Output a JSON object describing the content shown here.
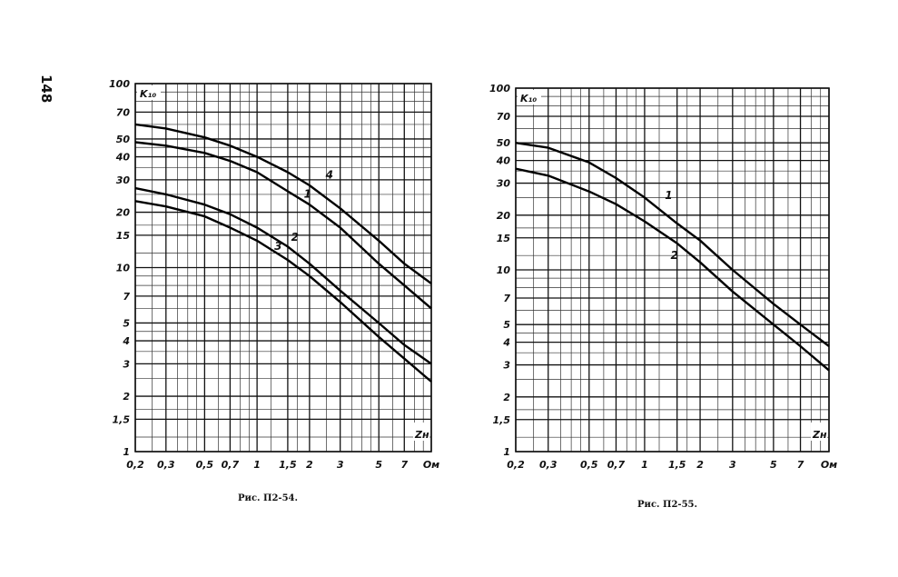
{
  "page_number": "148",
  "chart_data": [
    {
      "type": "line",
      "caption": "Рис. П2-54.",
      "ylabel": "K₁₀",
      "xlabel": "Zн",
      "x_scale": "log",
      "y_scale": "log",
      "xlim": [
        0.2,
        10
      ],
      "ylim": [
        1,
        100
      ],
      "grid": true,
      "x_ticks": [
        {
          "v": 0.2,
          "t": "0,2"
        },
        {
          "v": 0.3,
          "t": "0,3"
        },
        {
          "v": 0.5,
          "t": "0,5"
        },
        {
          "v": 0.7,
          "t": "0,7"
        },
        {
          "v": 1,
          "t": "1"
        },
        {
          "v": 1.5,
          "t": "1,5"
        },
        {
          "v": 2,
          "t": "2"
        },
        {
          "v": 3,
          "t": "3"
        },
        {
          "v": 5,
          "t": "5"
        },
        {
          "v": 7,
          "t": "7"
        },
        {
          "v": 10,
          "t": "Ом"
        }
      ],
      "y_ticks": [
        {
          "v": 1,
          "t": "1"
        },
        {
          "v": 1.5,
          "t": "1,5"
        },
        {
          "v": 2,
          "t": "2"
        },
        {
          "v": 3,
          "t": "3"
        },
        {
          "v": 4,
          "t": "4"
        },
        {
          "v": 5,
          "t": "5"
        },
        {
          "v": 7,
          "t": "7"
        },
        {
          "v": 10,
          "t": "10"
        },
        {
          "v": 15,
          "t": "15"
        },
        {
          "v": 20,
          "t": "20"
        },
        {
          "v": 30,
          "t": "30"
        },
        {
          "v": 40,
          "t": "40"
        },
        {
          "v": 50,
          "t": "50"
        },
        {
          "v": 70,
          "t": "70"
        },
        {
          "v": 100,
          "t": "100"
        }
      ],
      "series": [
        {
          "name": "4",
          "label_at": [
            2.6,
            30.5
          ],
          "x": [
            0.2,
            0.3,
            0.5,
            0.7,
            1,
            1.5,
            2,
            3,
            5,
            7,
            10
          ],
          "y": [
            60,
            57,
            51,
            46,
            40,
            33,
            28,
            21,
            14,
            10.5,
            8.2
          ]
        },
        {
          "name": "1",
          "label_at": [
            1.95,
            24
          ],
          "x": [
            0.2,
            0.3,
            0.5,
            0.7,
            1,
            1.5,
            2,
            3,
            5,
            7,
            10
          ],
          "y": [
            48,
            46,
            42,
            38,
            33,
            26,
            22,
            16.5,
            10.5,
            8,
            6
          ]
        },
        {
          "name": "2",
          "label_at": [
            1.65,
            14
          ],
          "x": [
            0.2,
            0.3,
            0.5,
            0.7,
            1,
            1.5,
            2,
            3,
            5,
            7,
            10
          ],
          "y": [
            27,
            25,
            22,
            19.5,
            16.5,
            13,
            10.5,
            7.5,
            5,
            3.8,
            3
          ]
        },
        {
          "name": "3",
          "label_at": [
            1.32,
            12.5
          ],
          "x": [
            0.2,
            0.3,
            0.5,
            0.7,
            1,
            1.5,
            2,
            3,
            5,
            7,
            10
          ],
          "y": [
            23,
            21.5,
            19,
            16.5,
            14,
            11,
            9,
            6.5,
            4.2,
            3.2,
            2.4
          ]
        }
      ]
    },
    {
      "type": "line",
      "caption": "Рис. П2-55.",
      "ylabel": "K₁₀",
      "xlabel": "Zн",
      "x_scale": "log",
      "y_scale": "log",
      "xlim": [
        0.2,
        10
      ],
      "ylim": [
        1,
        100
      ],
      "grid": true,
      "x_ticks": [
        {
          "v": 0.2,
          "t": "0,2"
        },
        {
          "v": 0.3,
          "t": "0,3"
        },
        {
          "v": 0.5,
          "t": "0,5"
        },
        {
          "v": 0.7,
          "t": "0,7"
        },
        {
          "v": 1,
          "t": "1"
        },
        {
          "v": 1.5,
          "t": "1,5"
        },
        {
          "v": 2,
          "t": "2"
        },
        {
          "v": 3,
          "t": "3"
        },
        {
          "v": 5,
          "t": "5"
        },
        {
          "v": 7,
          "t": "7"
        },
        {
          "v": 10,
          "t": "Ом"
        }
      ],
      "y_ticks": [
        {
          "v": 1,
          "t": "1"
        },
        {
          "v": 1.5,
          "t": "1,5"
        },
        {
          "v": 2,
          "t": "2"
        },
        {
          "v": 3,
          "t": "3"
        },
        {
          "v": 4,
          "t": "4"
        },
        {
          "v": 5,
          "t": "5"
        },
        {
          "v": 7,
          "t": "7"
        },
        {
          "v": 10,
          "t": "10"
        },
        {
          "v": 15,
          "t": "15"
        },
        {
          "v": 20,
          "t": "20"
        },
        {
          "v": 30,
          "t": "30"
        },
        {
          "v": 40,
          "t": "40"
        },
        {
          "v": 50,
          "t": "50"
        },
        {
          "v": 70,
          "t": "70"
        },
        {
          "v": 100,
          "t": "100"
        }
      ],
      "series": [
        {
          "name": "1",
          "label_at": [
            1.35,
            24.5
          ],
          "x": [
            0.2,
            0.3,
            0.5,
            0.7,
            1,
            1.5,
            2,
            3,
            5,
            7,
            10
          ],
          "y": [
            50,
            47,
            39,
            32,
            25,
            18,
            14.5,
            10,
            6.5,
            5,
            3.8
          ]
        },
        {
          "name": "2",
          "label_at": [
            1.45,
            11.5
          ],
          "x": [
            0.2,
            0.3,
            0.5,
            0.7,
            1,
            1.5,
            2,
            3,
            5,
            7,
            10
          ],
          "y": [
            36,
            33,
            27,
            23,
            18.5,
            14,
            11,
            7.6,
            5,
            3.8,
            2.8
          ]
        }
      ]
    }
  ]
}
